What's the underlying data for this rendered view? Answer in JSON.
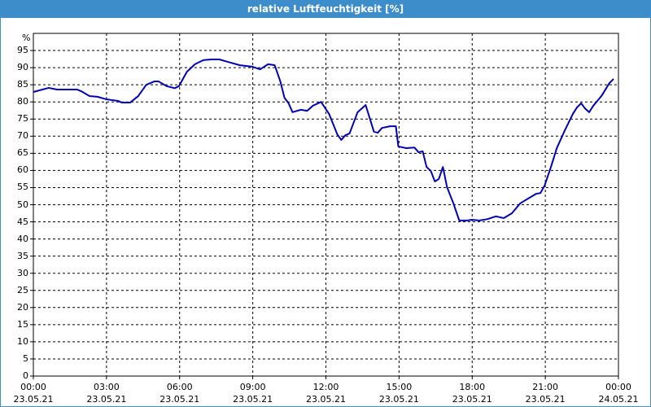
{
  "chart_data": {
    "type": "line",
    "title": "relative Luftfeuchtigkeit [%]",
    "ylabel": "%",
    "xlim": [
      0,
      24
    ],
    "xticks": [
      {
        "value": 0,
        "label": "00:00\n23.05.21"
      },
      {
        "value": 3,
        "label": "03:00\n23.05.21"
      },
      {
        "value": 6,
        "label": "06:00\n23.05.21"
      },
      {
        "value": 9,
        "label": "09:00\n23.05.21"
      },
      {
        "value": 12,
        "label": "12:00\n23.05.21"
      },
      {
        "value": 15,
        "label": "15:00\n23.05.21"
      },
      {
        "value": 18,
        "label": "18:00\n23.05.21"
      },
      {
        "value": 21,
        "label": "21:00\n23.05.21"
      },
      {
        "value": 24,
        "label": "00:00\n24.05.21"
      }
    ],
    "ylim": [
      0,
      100
    ],
    "yticks": [
      0,
      5,
      10,
      15,
      20,
      25,
      30,
      35,
      40,
      45,
      50,
      55,
      60,
      65,
      70,
      75,
      80,
      85,
      90,
      95
    ],
    "grid": true,
    "x": [
      0,
      0.63,
      0.97,
      1.8,
      1.97,
      2.3,
      2.63,
      2.97,
      3.47,
      3.63,
      3.97,
      4.3,
      4.63,
      4.97,
      5.13,
      5.47,
      5.8,
      5.97,
      6.3,
      6.63,
      6.97,
      7.3,
      7.63,
      7.97,
      8.47,
      8.97,
      9.3,
      9.63,
      9.9,
      10.13,
      10.3,
      10.47,
      10.63,
      10.97,
      11.23,
      11.47,
      11.8,
      12.13,
      12.47,
      12.63,
      12.8,
      12.97,
      13.3,
      13.63,
      13.97,
      14.13,
      14.3,
      14.63,
      14.87,
      14.97,
      15.3,
      15.63,
      15.8,
      15.97,
      16.13,
      16.3,
      16.47,
      16.63,
      16.8,
      16.97,
      17.23,
      17.47,
      17.8,
      17.97,
      18.3,
      18.63,
      18.97,
      19.3,
      19.63,
      19.97,
      20.3,
      20.63,
      20.8,
      20.97,
      21.23,
      21.47,
      21.8,
      22.13,
      22.3,
      22.47,
      22.63,
      22.8,
      22.97,
      23.3,
      23.63,
      23.8
    ],
    "series": [
      {
        "color": "#0000b4",
        "values": [
          82.9,
          84.1,
          83.6,
          83.6,
          83.1,
          81.7,
          81.5,
          80.8,
          80.3,
          79.8,
          79.8,
          81.7,
          85,
          86,
          86,
          84.6,
          84,
          84.6,
          88.8,
          91,
          92.2,
          92.4,
          92.4,
          91.7,
          90.7,
          90.3,
          89.5,
          91,
          90.7,
          86,
          81.2,
          79.6,
          77,
          77.7,
          77.4,
          78.9,
          80,
          76.5,
          70.5,
          68.9,
          70.3,
          70.8,
          77,
          79.1,
          71.3,
          71,
          72.4,
          72.9,
          72.9,
          67,
          66.5,
          66.7,
          65.3,
          65.6,
          61,
          59.9,
          56.8,
          57.5,
          61,
          55.1,
          50.4,
          45.4,
          45.4,
          45.6,
          45.4,
          45.8,
          46.6,
          46.1,
          47.5,
          50.4,
          51.8,
          53.2,
          53.4,
          55.6,
          61,
          66.5,
          71.7,
          76.5,
          78.4,
          79.6,
          78.1,
          77,
          78.9,
          81.7,
          85.5,
          86.7
        ]
      }
    ]
  }
}
